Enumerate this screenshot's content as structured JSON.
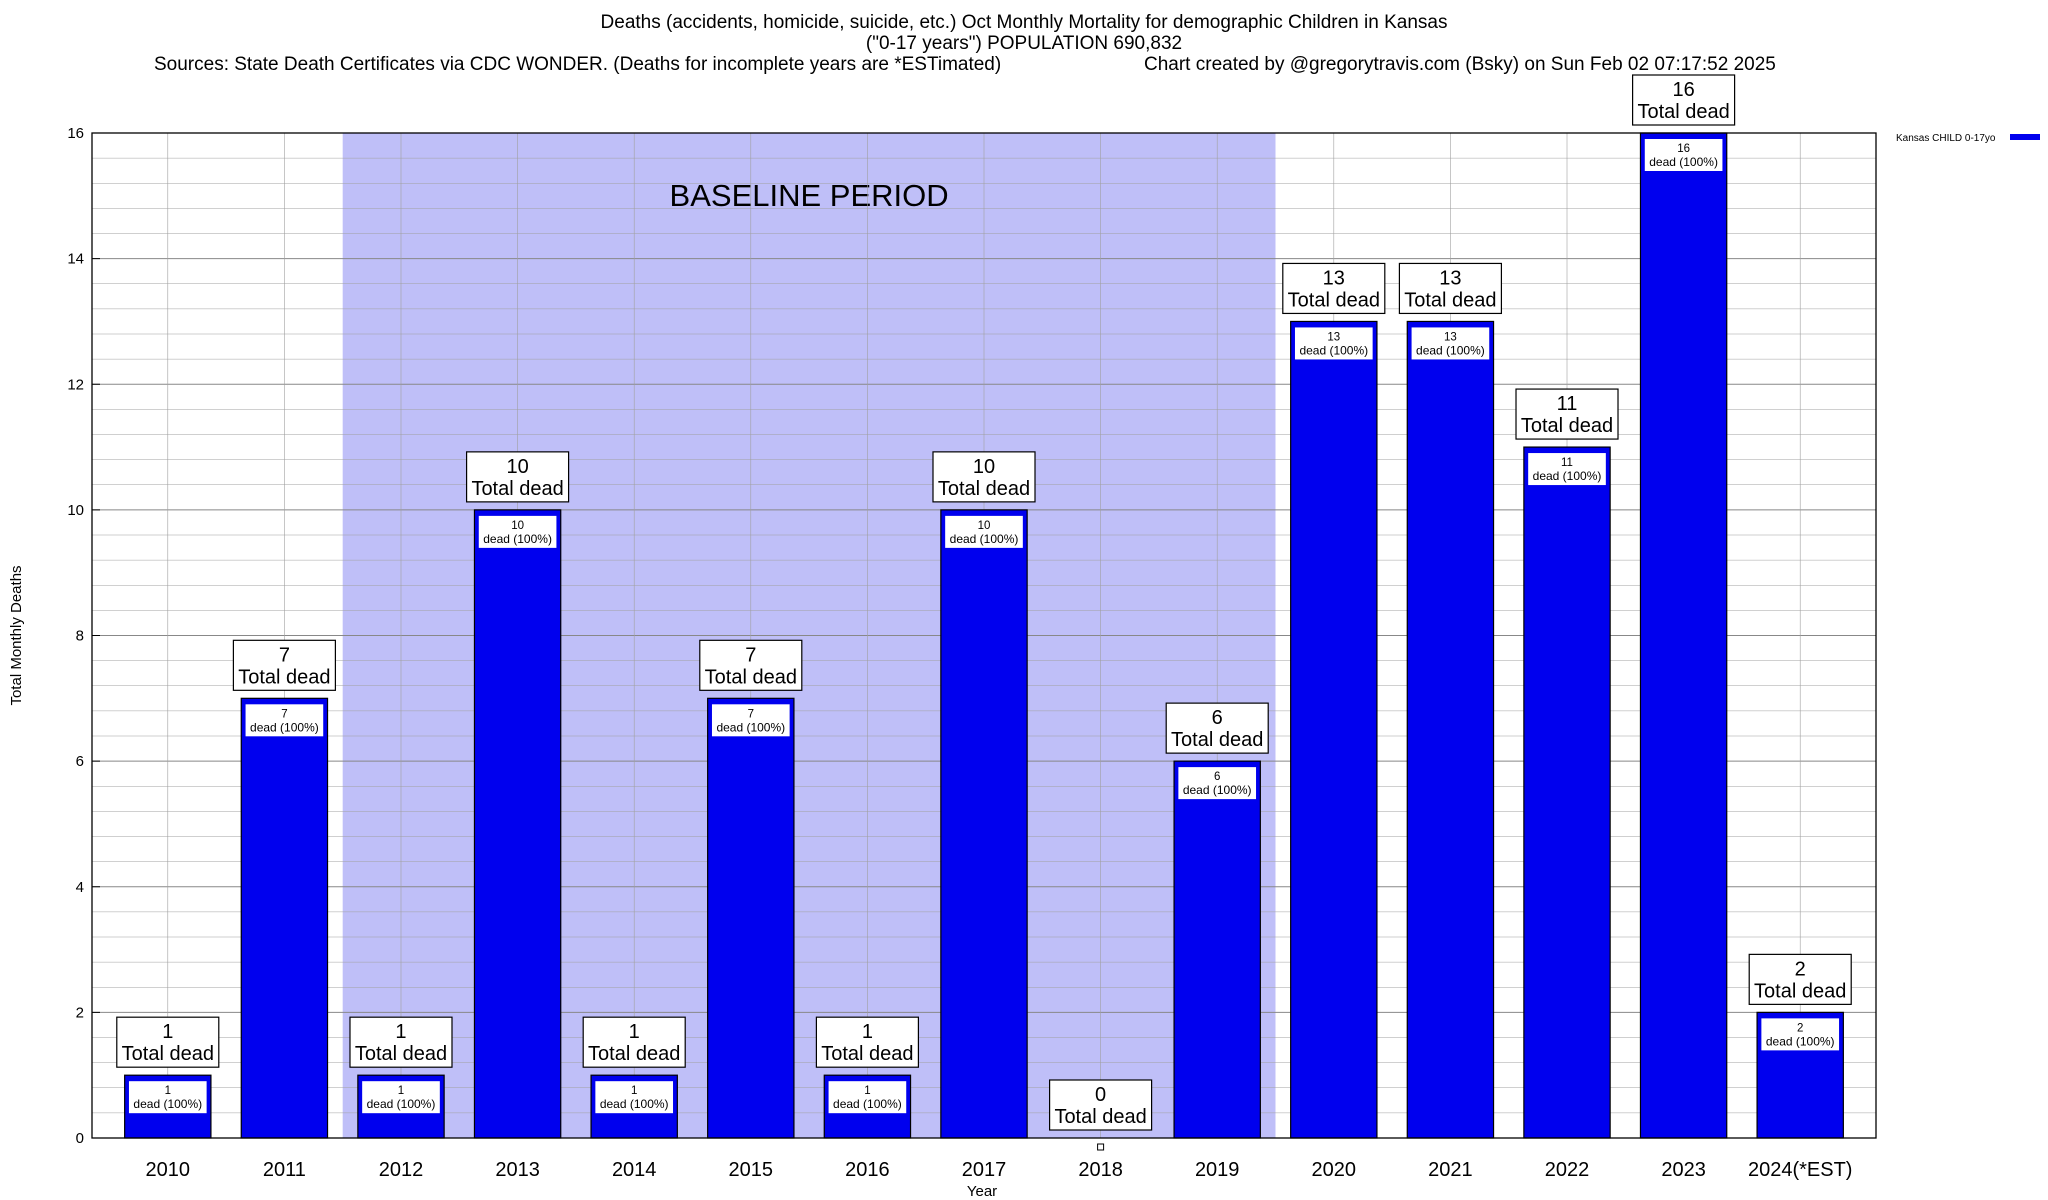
{
  "header": {
    "title_line1": "Deaths (accidents, homicide, suicide, etc.) Oct Monthly Mortality for demographic Children in Kansas",
    "title_line2": "(\"0-17 years\") POPULATION 690,832",
    "sources": "Sources: State Death Certificates via CDC WONDER. (Deaths for incomplete years are *ESTimated)",
    "credit": "Chart created by @gregorytravis.com (Bsky) on Sun Feb 02 07:17:52 2025"
  },
  "colors": {
    "bar": "#0000ee",
    "bar_outline": "#000000",
    "baseline_shade": "#bfbff8",
    "grid": "#a0a0a0"
  },
  "chart_data": {
    "type": "bar",
    "categories": [
      "2010",
      "2011",
      "2012",
      "2013",
      "2014",
      "2015",
      "2016",
      "2017",
      "2018",
      "2019",
      "2020",
      "2021",
      "2022",
      "2023",
      "2024(*EST)"
    ],
    "series": [
      {
        "name": "Kansas CHILD 0-17yo",
        "values": [
          1,
          7,
          1,
          10,
          1,
          7,
          1,
          10,
          0,
          6,
          13,
          13,
          11,
          16,
          2
        ]
      }
    ],
    "ylim": [
      0,
      16
    ],
    "yticks": [
      "0",
      "2",
      "4",
      "6",
      "8",
      "10",
      "12",
      "14",
      "16"
    ],
    "xlabel": "Year",
    "ylabel": "Total Monthly Deaths",
    "grid": true,
    "legend_position": "right",
    "annotations": {
      "baseline_label": "BASELINE PERIOD",
      "baseline_range": [
        "2012",
        "2019"
      ],
      "total_label": "Total dead",
      "inner_label": "dead (100%)"
    }
  }
}
